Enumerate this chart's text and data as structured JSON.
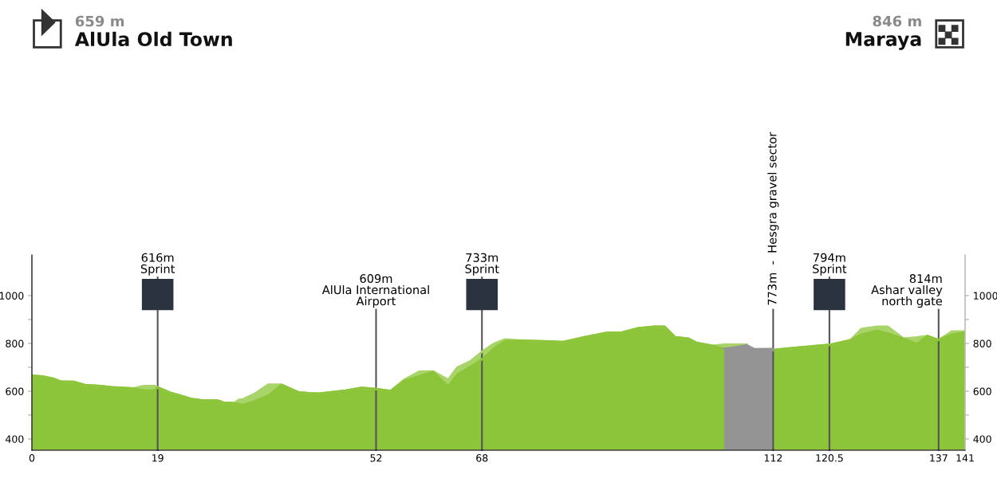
{
  "chart_data": {
    "type": "area",
    "title": "AlUla Old Town",
    "subtitle": "659 m",
    "annotations": [
      "846 m",
      "Maraya"
    ],
    "x": [
      0,
      1.6,
      3.2,
      4.4,
      6.4,
      8,
      10.4,
      12,
      15.3,
      16.9,
      18.5,
      19,
      20.9,
      22.5,
      24.1,
      25.7,
      28.1,
      28.9,
      30.5,
      31.3,
      31.9,
      33.7,
      35.7,
      37.7,
      40.2,
      41.8,
      43.4,
      45.8,
      47.4,
      49.8,
      52,
      54.2,
      56.2,
      58.6,
      60.6,
      62.9,
      64.3,
      66.3,
      68,
      69.9,
      71.5,
      73.9,
      77.1,
      80.3,
      83.5,
      86.7,
      89.2,
      91.6,
      94,
      95.6,
      97.2,
      99.2,
      100.4,
      102.8,
      104.6,
      106,
      108,
      109.2,
      111.8,
      112,
      115.7,
      120.5,
      123.7,
      125.3,
      127.7,
      129.3,
      131.7,
      133.7,
      135.3,
      137,
      139,
      141
    ],
    "series": [
      {
        "color": "#a9d46a",
        "values": [
          665,
          662,
          653,
          640,
          639,
          626,
          622,
          617,
          612,
          622,
          622,
          616,
          594,
          581,
          568,
          562,
          561,
          553,
          550,
          564,
          566,
          590,
          628,
          628,
          596,
          592,
          590,
          598,
          603,
          614,
          609,
          601,
          647,
          683,
          683,
          648,
          700,
          726,
          765,
          800,
          817,
          812,
          809,
          806,
          826,
          844,
          846,
          864,
          870,
          870,
          826,
          820,
          803,
          790,
          795,
          795,
          795,
          null,
          null,
          773,
          783,
          794,
          814,
          860,
          870,
          870,
          820,
          825,
          831,
          814,
          850,
          850
        ]
      },
      {
        "color": "#8cc43a",
        "values": [
          665,
          662,
          653,
          640,
          639,
          626,
          622,
          617,
          612,
          603,
          603,
          616,
          594,
          581,
          568,
          562,
          561,
          553,
          550,
          546,
          542,
          559,
          581,
          626,
          596,
          592,
          590,
          598,
          603,
          614,
          609,
          601,
          642,
          664,
          681,
          620,
          670,
          703,
          733,
          781,
          809,
          812,
          809,
          806,
          826,
          844,
          846,
          864,
          870,
          870,
          826,
          820,
          803,
          790,
          778,
          null,
          null,
          null,
          null,
          773,
          783,
          794,
          814,
          837,
          853,
          842,
          820,
          798,
          831,
          814,
          837,
          846
        ]
      },
      {
        "color": "#959495",
        "values": [
          null,
          null,
          null,
          null,
          null,
          null,
          null,
          null,
          null,
          null,
          null,
          null,
          null,
          null,
          null,
          null,
          null,
          null,
          null,
          null,
          null,
          null,
          null,
          null,
          null,
          null,
          null,
          null,
          null,
          null,
          null,
          null,
          null,
          null,
          null,
          null,
          null,
          null,
          null,
          null,
          null,
          null,
          null,
          null,
          null,
          null,
          null,
          null,
          null,
          null,
          null,
          null,
          null,
          null,
          778,
          783,
          792,
          776,
          777,
          773,
          null,
          null,
          null,
          null,
          null,
          null,
          null,
          null,
          null,
          null,
          null,
          null
        ]
      }
    ],
    "xlim": [
      0,
      141
    ],
    "ylim": [
      353,
      1170
    ],
    "xticks": [
      0,
      19,
      52,
      68,
      112,
      {
        "value": 120.5,
        "label": "120.5"
      },
      137,
      141
    ],
    "yticks": [
      400,
      {
        "value": 500,
        "label": null
      },
      600,
      {
        "value": 700,
        "label": null
      },
      800,
      {
        "value": 900,
        "label": null
      },
      1000
    ],
    "y2lim": [
      353,
      1170
    ],
    "y2ticks": [
      400,
      {
        "value": 500,
        "label": null
      },
      600,
      {
        "value": 700,
        "label": null
      },
      800,
      {
        "value": 900,
        "label": null
      },
      1000
    ],
    "ref_lines": [
      {
        "axis": "x",
        "value": 19,
        "label": "616m\nSprint"
      },
      {
        "axis": "x",
        "value": 52,
        "label": "609m\nAlUla International\nAirport"
      },
      {
        "axis": "x",
        "value": 68,
        "label": "733m\nSprint"
      },
      {
        "axis": "x",
        "value": 112,
        "label": "773m  -  Hesgra gravel sector"
      },
      {
        "axis": "x",
        "value": 120.5,
        "label": "794m\nSprint"
      },
      {
        "axis": "x",
        "value": 137,
        "label": "814m\nAshar valley\nnorth gate"
      }
    ],
    "grid": false,
    "legend": false
  }
}
